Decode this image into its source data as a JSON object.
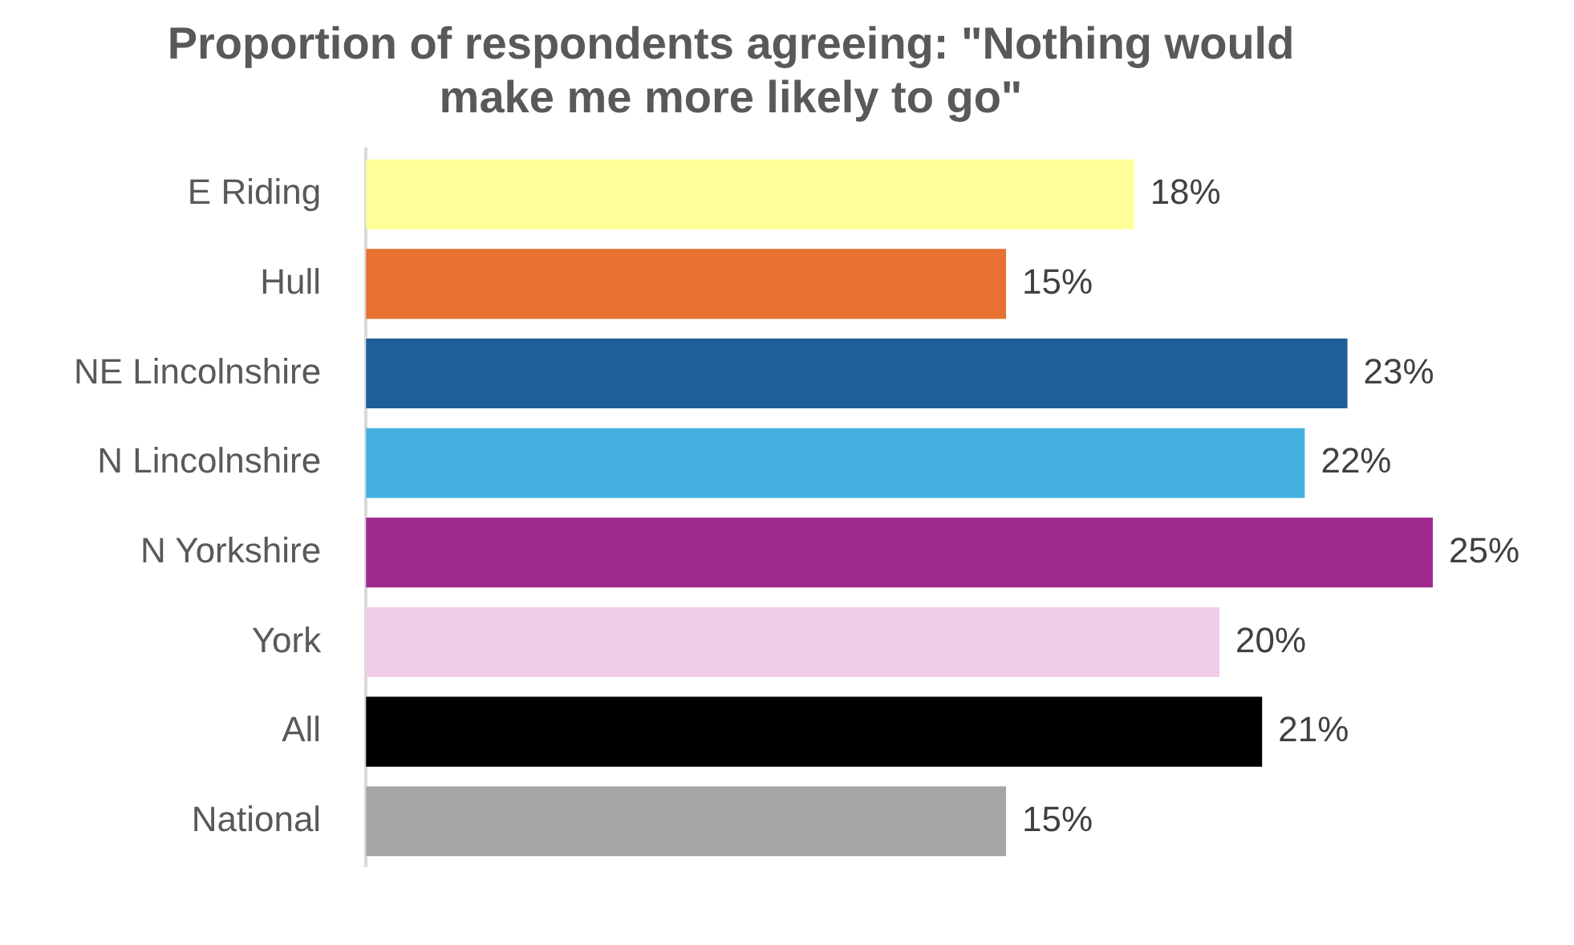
{
  "chart_data": {
    "type": "bar",
    "orientation": "horizontal",
    "title": "Proportion of respondents agreeing: \"Nothing would make me more likely to go\"",
    "categories": [
      "E Riding",
      "Hull",
      "NE Lincolnshire",
      "N Lincolnshire",
      "N Yorkshire",
      "York",
      "All",
      "National"
    ],
    "values": [
      18,
      15,
      23,
      22,
      25,
      20,
      21,
      15
    ],
    "value_labels": [
      "18%",
      "15%",
      "23%",
      "22%",
      "25%",
      "20%",
      "21%",
      "15%"
    ],
    "colors": [
      "#ffff99",
      "#e87232",
      "#1f5f99",
      "#45b0e1",
      "#a0298f",
      "#f1cdea",
      "#000000",
      "#a6a6a6"
    ],
    "legend": false
  }
}
